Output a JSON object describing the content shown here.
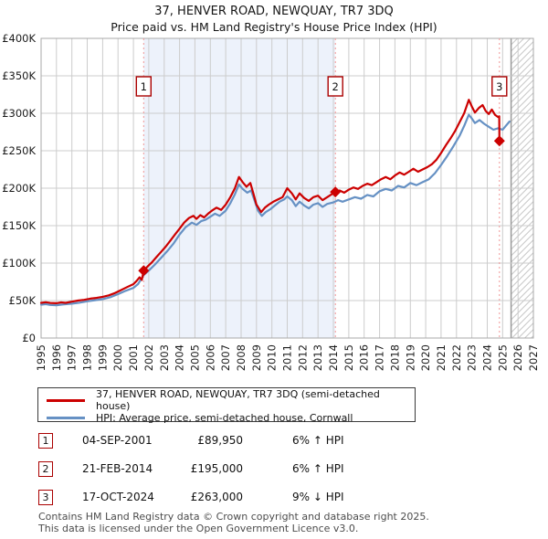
{
  "header": {
    "title": "37, HENVER ROAD, NEWQUAY, TR7 3DQ",
    "subtitle": "Price paid vs. HM Land Registry's House Price Index (HPI)"
  },
  "chart_data": {
    "type": "line",
    "title": "37, HENVER ROAD, NEWQUAY, TR7 3DQ — Price paid vs. HPI",
    "xlabel": "",
    "ylabel": "",
    "x_range": [
      1995,
      2027
    ],
    "y_range": [
      0,
      400000
    ],
    "grid": true,
    "legend_position": "bottom",
    "x_ticks": [
      1995,
      1996,
      1997,
      1998,
      1999,
      2000,
      2001,
      2002,
      2003,
      2004,
      2005,
      2006,
      2007,
      2008,
      2009,
      2010,
      2011,
      2012,
      2013,
      2014,
      2015,
      2016,
      2017,
      2018,
      2019,
      2020,
      2021,
      2022,
      2023,
      2024,
      2025,
      2026,
      2027
    ],
    "y_ticks": [
      {
        "value": 0,
        "label": "£0"
      },
      {
        "value": 50000,
        "label": "£50K"
      },
      {
        "value": 100000,
        "label": "£100K"
      },
      {
        "value": 150000,
        "label": "£150K"
      },
      {
        "value": 200000,
        "label": "£200K"
      },
      {
        "value": 250000,
        "label": "£250K"
      },
      {
        "value": 300000,
        "label": "£300K"
      },
      {
        "value": 350000,
        "label": "£350K"
      },
      {
        "value": 400000,
        "label": "£400K"
      }
    ],
    "shaded_region": {
      "from_x": 2001.67,
      "to_x": 2014.13,
      "color": "#edf2fb"
    },
    "hatched_region": {
      "from_x": 2025.55,
      "to_x": 2027
    },
    "colors": {
      "grid": "#cccccc",
      "frame": "#a8a8a8",
      "dotted_line": "#f19595",
      "marker_box_border": "#aa0000",
      "hatch": "#c9c9c9",
      "hatch_edge": "#999999",
      "axis_text": "#1a1a1a"
    },
    "series": [
      {
        "name": "37, HENVER ROAD, NEWQUAY, TR7 3DQ (semi-detached house)",
        "color": "#cc0000",
        "points": [
          [
            1995.0,
            47000
          ],
          [
            1995.3,
            47800
          ],
          [
            1995.6,
            46800
          ],
          [
            1996.0,
            46500
          ],
          [
            1996.3,
            47600
          ],
          [
            1996.6,
            47000
          ],
          [
            1997.0,
            48500
          ],
          [
            1997.4,
            50000
          ],
          [
            1997.8,
            51000
          ],
          [
            1998.2,
            52500
          ],
          [
            1998.6,
            53500
          ],
          [
            1999.0,
            55000
          ],
          [
            1999.4,
            57000
          ],
          [
            1999.8,
            60000
          ],
          [
            2000.2,
            64000
          ],
          [
            2000.6,
            68000
          ],
          [
            2001.0,
            72000
          ],
          [
            2001.2,
            76000
          ],
          [
            2001.4,
            81000
          ],
          [
            2001.55,
            77500
          ],
          [
            2001.67,
            89950
          ],
          [
            2001.9,
            95000
          ],
          [
            2002.2,
            101000
          ],
          [
            2002.5,
            108000
          ],
          [
            2002.8,
            115000
          ],
          [
            2003.1,
            122000
          ],
          [
            2003.4,
            130000
          ],
          [
            2003.7,
            138000
          ],
          [
            2004.0,
            146000
          ],
          [
            2004.3,
            154000
          ],
          [
            2004.6,
            160000
          ],
          [
            2004.9,
            163000
          ],
          [
            2005.1,
            159000
          ],
          [
            2005.35,
            164000
          ],
          [
            2005.6,
            161000
          ],
          [
            2005.85,
            166000
          ],
          [
            2006.1,
            170000
          ],
          [
            2006.4,
            174000
          ],
          [
            2006.7,
            171000
          ],
          [
            2007.0,
            178000
          ],
          [
            2007.3,
            188000
          ],
          [
            2007.6,
            200000
          ],
          [
            2007.86,
            215000
          ],
          [
            2008.1,
            208000
          ],
          [
            2008.35,
            202000
          ],
          [
            2008.6,
            207000
          ],
          [
            2008.8,
            193000
          ],
          [
            2009.0,
            178000
          ],
          [
            2009.3,
            168000
          ],
          [
            2009.55,
            174000
          ],
          [
            2009.8,
            178000
          ],
          [
            2010.1,
            182000
          ],
          [
            2010.4,
            185000
          ],
          [
            2010.7,
            188000
          ],
          [
            2011.0,
            200000
          ],
          [
            2011.3,
            193000
          ],
          [
            2011.55,
            185000
          ],
          [
            2011.8,
            193000
          ],
          [
            2012.1,
            187000
          ],
          [
            2012.4,
            183000
          ],
          [
            2012.7,
            188000
          ],
          [
            2013.0,
            190000
          ],
          [
            2013.3,
            184000
          ],
          [
            2013.6,
            188000
          ],
          [
            2013.9,
            192000
          ],
          [
            2014.13,
            195000
          ],
          [
            2014.4,
            197000
          ],
          [
            2014.7,
            194000
          ],
          [
            2015.0,
            198000
          ],
          [
            2015.3,
            201000
          ],
          [
            2015.6,
            199000
          ],
          [
            2015.9,
            203000
          ],
          [
            2016.2,
            206000
          ],
          [
            2016.5,
            204000
          ],
          [
            2016.8,
            208000
          ],
          [
            2017.1,
            212000
          ],
          [
            2017.4,
            215000
          ],
          [
            2017.7,
            212000
          ],
          [
            2018.0,
            217000
          ],
          [
            2018.3,
            221000
          ],
          [
            2018.6,
            218000
          ],
          [
            2018.9,
            222000
          ],
          [
            2019.2,
            226000
          ],
          [
            2019.5,
            222000
          ],
          [
            2019.8,
            225000
          ],
          [
            2020.1,
            228000
          ],
          [
            2020.4,
            232000
          ],
          [
            2020.7,
            238000
          ],
          [
            2021.0,
            247000
          ],
          [
            2021.3,
            257000
          ],
          [
            2021.6,
            266000
          ],
          [
            2021.9,
            276000
          ],
          [
            2022.2,
            288000
          ],
          [
            2022.5,
            300000
          ],
          [
            2022.8,
            318000
          ],
          [
            2023.0,
            309000
          ],
          [
            2023.2,
            301000
          ],
          [
            2023.45,
            307000
          ],
          [
            2023.7,
            311000
          ],
          [
            2023.9,
            303000
          ],
          [
            2024.1,
            299000
          ],
          [
            2024.3,
            305000
          ],
          [
            2024.5,
            298000
          ],
          [
            2024.7,
            295000
          ],
          [
            2024.78,
            296000
          ],
          [
            2024.79,
            263000
          ]
        ]
      },
      {
        "name": "HPI: Average price, semi-detached house, Cornwall",
        "color": "#6691c4",
        "points": [
          [
            1995.0,
            44500
          ],
          [
            1995.3,
            45200
          ],
          [
            1995.6,
            44200
          ],
          [
            1996.0,
            43800
          ],
          [
            1996.4,
            44800
          ],
          [
            1997.0,
            45800
          ],
          [
            1997.5,
            47200
          ],
          [
            1998.0,
            49000
          ],
          [
            1998.5,
            50500
          ],
          [
            1999.0,
            52000
          ],
          [
            1999.5,
            54500
          ],
          [
            2000.0,
            58500
          ],
          [
            2000.5,
            63000
          ],
          [
            2001.0,
            67000
          ],
          [
            2001.3,
            72000
          ],
          [
            2001.67,
            84000
          ],
          [
            2002.0,
            90000
          ],
          [
            2002.4,
            98000
          ],
          [
            2002.8,
            107000
          ],
          [
            2003.2,
            116000
          ],
          [
            2003.6,
            126000
          ],
          [
            2004.0,
            138000
          ],
          [
            2004.4,
            148000
          ],
          [
            2004.8,
            154000
          ],
          [
            2005.1,
            151000
          ],
          [
            2005.4,
            156000
          ],
          [
            2005.7,
            158000
          ],
          [
            2006.0,
            162000
          ],
          [
            2006.3,
            166000
          ],
          [
            2006.6,
            163000
          ],
          [
            2007.0,
            170000
          ],
          [
            2007.3,
            180000
          ],
          [
            2007.6,
            192000
          ],
          [
            2007.86,
            205000
          ],
          [
            2008.1,
            199000
          ],
          [
            2008.4,
            194000
          ],
          [
            2008.65,
            197000
          ],
          [
            2008.85,
            185000
          ],
          [
            2009.1,
            170000
          ],
          [
            2009.35,
            163000
          ],
          [
            2009.6,
            168000
          ],
          [
            2009.9,
            172000
          ],
          [
            2010.2,
            177000
          ],
          [
            2010.5,
            182000
          ],
          [
            2010.8,
            185000
          ],
          [
            2011.0,
            189000
          ],
          [
            2011.3,
            184000
          ],
          [
            2011.55,
            176000
          ],
          [
            2011.8,
            182000
          ],
          [
            2012.1,
            177000
          ],
          [
            2012.4,
            173000
          ],
          [
            2012.7,
            178000
          ],
          [
            2013.0,
            180000
          ],
          [
            2013.3,
            175000
          ],
          [
            2013.6,
            179000
          ],
          [
            2014.0,
            181000
          ],
          [
            2014.3,
            184000
          ],
          [
            2014.6,
            182000
          ],
          [
            2015.0,
            185000
          ],
          [
            2015.4,
            188000
          ],
          [
            2015.8,
            186000
          ],
          [
            2016.2,
            191000
          ],
          [
            2016.6,
            189000
          ],
          [
            2017.0,
            196000
          ],
          [
            2017.4,
            199000
          ],
          [
            2017.8,
            197000
          ],
          [
            2018.2,
            203000
          ],
          [
            2018.6,
            201000
          ],
          [
            2019.0,
            207000
          ],
          [
            2019.4,
            204000
          ],
          [
            2019.8,
            208000
          ],
          [
            2020.2,
            212000
          ],
          [
            2020.6,
            220000
          ],
          [
            2021.0,
            231000
          ],
          [
            2021.4,
            243000
          ],
          [
            2021.8,
            256000
          ],
          [
            2022.2,
            270000
          ],
          [
            2022.5,
            283000
          ],
          [
            2022.8,
            298000
          ],
          [
            2023.0,
            293000
          ],
          [
            2023.2,
            287000
          ],
          [
            2023.5,
            291000
          ],
          [
            2023.8,
            286000
          ],
          [
            2024.1,
            282000
          ],
          [
            2024.4,
            278000
          ],
          [
            2024.7,
            280000
          ],
          [
            2025.0,
            278000
          ],
          [
            2025.2,
            283000
          ],
          [
            2025.45,
            289000
          ]
        ]
      }
    ],
    "sale_markers": [
      {
        "n": "1",
        "x": 2001.67,
        "y": 89950
      },
      {
        "n": "2",
        "x": 2014.13,
        "y": 195000
      },
      {
        "n": "3",
        "x": 2024.79,
        "y": 263000
      }
    ]
  },
  "legend": {
    "items": [
      {
        "label": "37, HENVER ROAD, NEWQUAY, TR7 3DQ (semi-detached house)",
        "color": "#cc0000"
      },
      {
        "label": "HPI: Average price, semi-detached house, Cornwall",
        "color": "#6691c4"
      }
    ]
  },
  "table": {
    "rows": [
      {
        "n": "1",
        "date": "04-SEP-2001",
        "price": "£89,950",
        "hpi": "6% ↑ HPI"
      },
      {
        "n": "2",
        "date": "21-FEB-2014",
        "price": "£195,000",
        "hpi": "6% ↑ HPI"
      },
      {
        "n": "3",
        "date": "17-OCT-2024",
        "price": "£263,000",
        "hpi": "9% ↓ HPI"
      }
    ]
  },
  "footer": {
    "line1": "Contains HM Land Registry data © Crown copyright and database right 2025.",
    "line2": "This data is licensed under the Open Government Licence v3.0."
  }
}
